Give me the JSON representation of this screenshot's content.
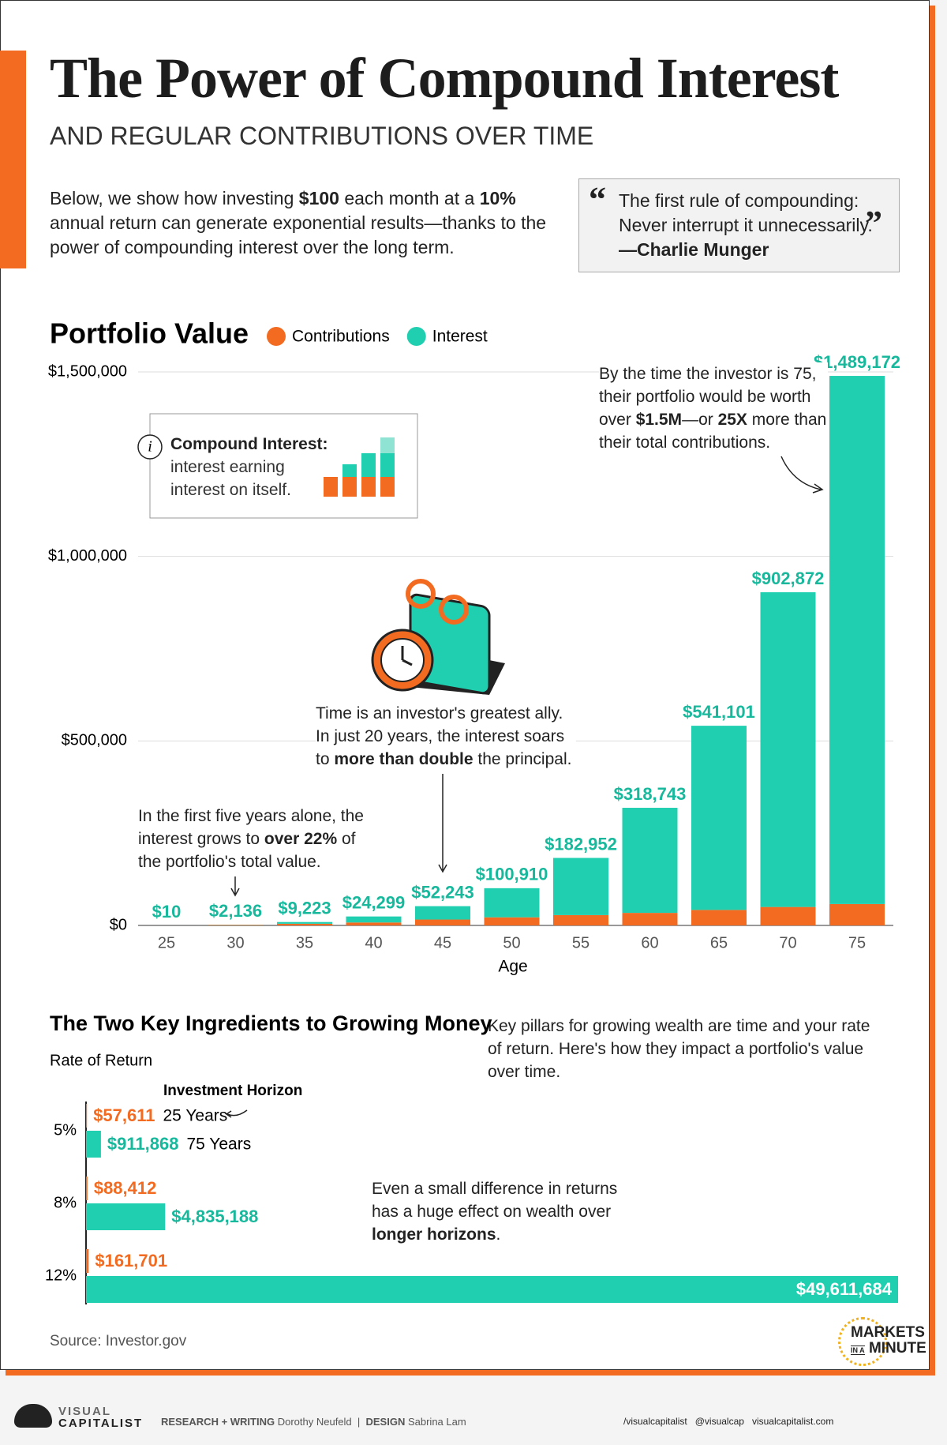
{
  "header": {
    "title": "The Power of Compound Interest",
    "subtitle": "AND REGULAR CONTRIBUTIONS OVER TIME",
    "intro": [
      {
        "text": "Below, we show how investing "
      },
      {
        "text": "$100",
        "bold": true
      },
      {
        "text": " each month at a "
      },
      {
        "text": "10%",
        "bold": true
      },
      {
        "text": " annual return can generate exponential results—thanks to the power of compounding interest over the long term."
      }
    ],
    "quote": {
      "lines": [
        "The first rule of compounding:",
        "Never interrupt it unnecessarily."
      ],
      "author": "—Charlie Munger"
    }
  },
  "callout": {
    "title": "Compound Interest:",
    "lines": [
      "interest earning",
      "interest on itself."
    ]
  },
  "chart_data": [
    {
      "type": "bar",
      "stacked": true,
      "title": "Portfolio Value",
      "x_label": "Age",
      "categories": [
        25,
        30,
        35,
        40,
        45,
        50,
        55,
        60,
        65,
        70,
        75
      ],
      "series": [
        {
          "name": "Contributions",
          "color": "#f26b21",
          "values": [
            10,
            1660,
            4500,
            8000,
            16000,
            22000,
            28000,
            34000,
            42000,
            50000,
            58000
          ]
        },
        {
          "name": "Interest",
          "color": "#1fcfb0",
          "values": [
            0,
            476,
            4723,
            16299,
            36243,
            78910,
            154952,
            284743,
            499101,
            852872,
            1431172
          ]
        }
      ],
      "total_labels": [
        "$10",
        "$2,136",
        "$9,223",
        "$24,299",
        "$52,243",
        "$100,910",
        "$182,952",
        "$318,743",
        "$541,101",
        "$902,872",
        "$1,489,172"
      ],
      "ylim": [
        0,
        1500000
      ],
      "yticks": [
        {
          "value": 0,
          "label": "$0"
        },
        {
          "value": 500000,
          "label": "$500,000"
        },
        {
          "value": 1000000,
          "label": "$1,000,000"
        },
        {
          "value": 1500000,
          "label": "$1,500,000"
        }
      ],
      "grid": true,
      "annotations": [
        [
          {
            "text": "By the time the investor is 75, their portfolio would be worth over "
          },
          {
            "text": "$1.5M",
            "bold": true
          },
          {
            "text": "—or "
          },
          {
            "text": "25X",
            "bold": true
          },
          {
            "text": " more than their total contributions."
          }
        ],
        [
          {
            "text": "Time is an investor's greatest ally. In just 20 years, the interest soars to "
          },
          {
            "text": "more than double",
            "bold": true
          },
          {
            "text": " the principal."
          }
        ],
        [
          {
            "text": "In the first five years alone, the interest grows to "
          },
          {
            "text": "over 22%",
            "bold": true
          },
          {
            "text": " of the portfolio's total value."
          }
        ]
      ]
    },
    {
      "type": "barh",
      "title": "The Two Key Ingredients to Growing Money",
      "y_label": "Rate of Return",
      "legend_title": "Investment Horizon",
      "description": "Key pillars for growing wealth are time and your rate of return. Here's how they impact a portfolio's value over time.",
      "categories": [
        "5%",
        "8%",
        "12%"
      ],
      "series": [
        {
          "name": "25 Years",
          "color": "#f26b21",
          "values": [
            57611,
            88412,
            161701
          ],
          "value_labels": [
            "$57,611",
            "$88,412",
            "$161,701"
          ]
        },
        {
          "name": "75 Years",
          "color": "#1fcfb0",
          "values": [
            911868,
            4835188,
            49611684
          ],
          "value_labels": [
            "$911,868",
            "$4,835,188",
            "$49,611,684"
          ]
        }
      ],
      "annotation": [
        {
          "text": "Even a small difference in returns has a huge effect on wealth over "
        },
        {
          "text": "longer horizons",
          "bold": true
        },
        {
          "text": "."
        }
      ]
    }
  ],
  "source": "Source: Investor.gov",
  "badge": [
    "MARKETS",
    "IN A",
    "MINUTE"
  ],
  "footer": {
    "brand": [
      "VISUAL",
      "CAPITALIST"
    ],
    "research_label": "RESEARCH + WRITING",
    "research": "Dorothy Neufeld",
    "design_label": "DESIGN",
    "design": "Sabrina Lam",
    "social_1": "/visualcapitalist",
    "social_2": "@visualcap",
    "site": "visualcapitalist.com"
  }
}
